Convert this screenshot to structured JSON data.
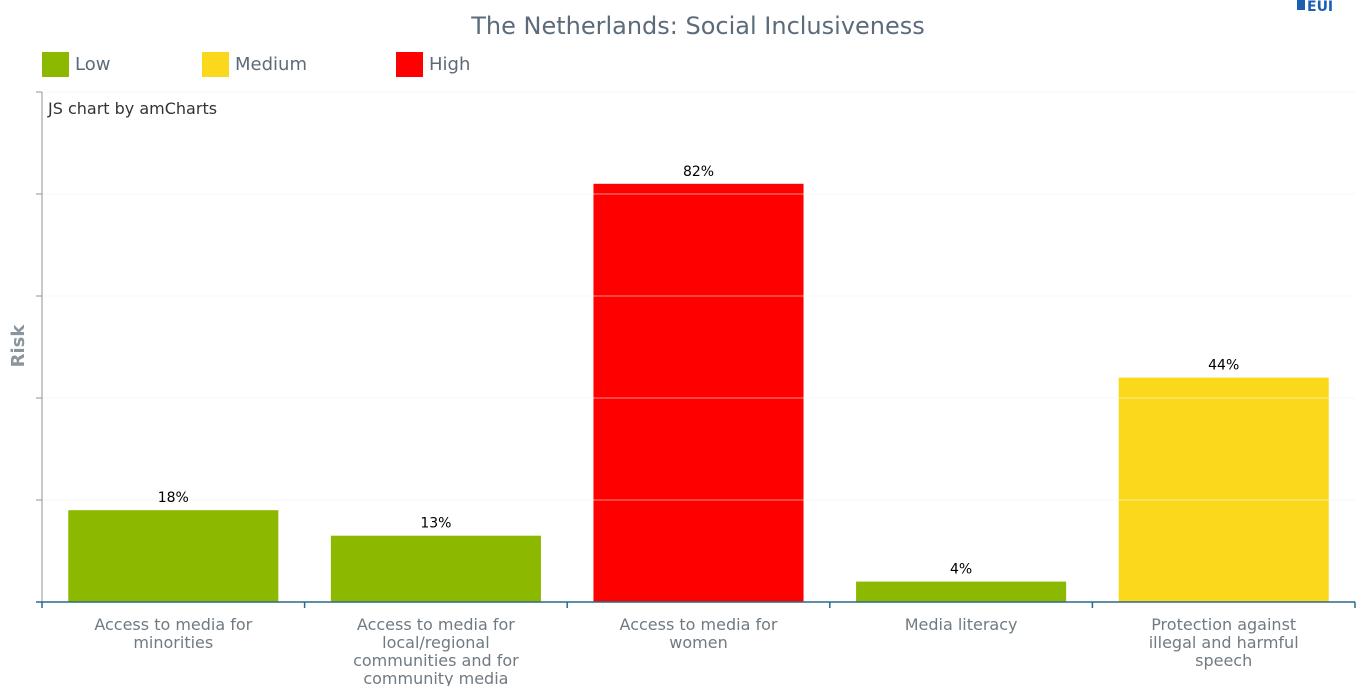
{
  "chart_data": {
    "type": "bar",
    "title": "The Netherlands: Social Inclusiveness",
    "ylabel": "Risk",
    "xlabel": "",
    "ylim": [
      0,
      100
    ],
    "credit": "JS chart by amCharts",
    "legend_position": "top-left",
    "legend": [
      {
        "label": "Low",
        "color": "#8cb900"
      },
      {
        "label": "Medium",
        "color": "#fbd81b"
      },
      {
        "label": "High",
        "color": "#ff0000"
      }
    ],
    "categories": [
      [
        "Access to media for",
        "minorities"
      ],
      [
        "Access to media for",
        "local/regional",
        "communities and for",
        "community media"
      ],
      [
        "Access to media for",
        "women"
      ],
      [
        "Media literacy"
      ],
      [
        "Protection against",
        "illegal and harmful",
        "speech"
      ]
    ],
    "values": [
      18,
      13,
      82,
      4,
      44
    ],
    "value_labels": [
      "18%",
      "13%",
      "82%",
      "4%",
      "44%"
    ],
    "colors": [
      "#8cb900",
      "#8cb900",
      "#ff0000",
      "#8cb900",
      "#fbd81b"
    ],
    "grid": true
  },
  "logo": {
    "text": "EUI"
  }
}
